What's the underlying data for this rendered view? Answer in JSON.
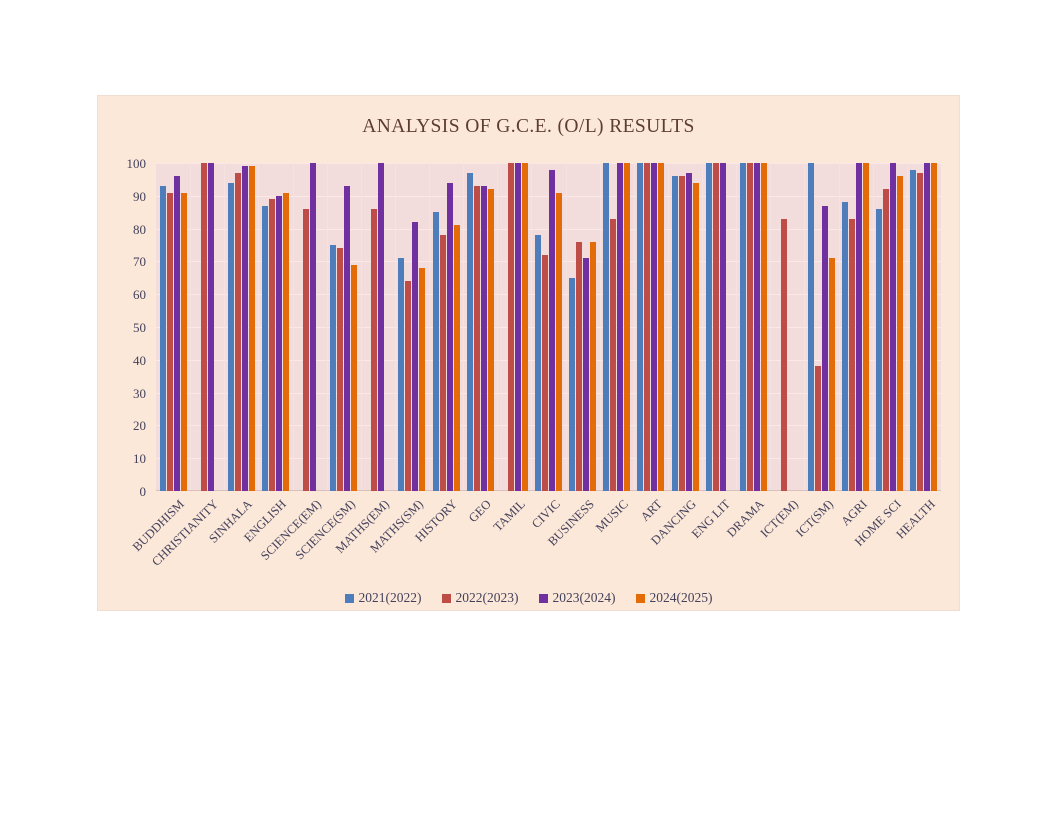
{
  "chart": {
    "panel_bg": "#fce8d9",
    "plot_bg": "#f3dddc",
    "title_color": "#5d3c34",
    "tick_color": "#43415c",
    "gridline_color": "#fae9e7",
    "axis_line_color": "#d8c0bd"
  },
  "chart_data": {
    "type": "bar",
    "title": "ANALYSIS OF G.C.E. (O/L) RESULTS",
    "categories": [
      "BUDDHISM",
      "CHRISTIANITY",
      "SINHALA",
      "ENGLISH",
      "SCIENCE(EM)",
      "SCIENCE(SM)",
      "MATHS(EM)",
      "MATHS(SM)",
      "HISTORY",
      "GEO",
      "TAMIL",
      "CIVIC",
      "BUSINESS",
      "MUSIC",
      "ART",
      "DANCING",
      "ENG LIT",
      "DRAMA",
      "ICT(EM)",
      "ICT(SM)",
      "AGRI",
      "HOME SCI",
      "HEALTH"
    ],
    "series": [
      {
        "name": "2021(2022)",
        "color": "#4d7ebb",
        "values": [
          93,
          null,
          94,
          87,
          null,
          75,
          null,
          71,
          85,
          97,
          null,
          78,
          65,
          100,
          100,
          96,
          100,
          100,
          null,
          100,
          88,
          86,
          98
        ]
      },
      {
        "name": "2022(2023)",
        "color": "#bf4d47",
        "values": [
          91,
          100,
          97,
          89,
          86,
          74,
          86,
          64,
          78,
          93,
          100,
          72,
          76,
          83,
          100,
          96,
          100,
          100,
          83,
          38,
          83,
          92,
          97
        ]
      },
      {
        "name": "2023(2024)",
        "color": "#7030a0",
        "values": [
          96,
          100,
          99,
          90,
          100,
          93,
          100,
          82,
          94,
          93,
          100,
          98,
          71,
          100,
          100,
          97,
          100,
          100,
          null,
          87,
          100,
          100,
          100
        ]
      },
      {
        "name": "2024(2025)",
        "color": "#e36c09",
        "values": [
          91,
          null,
          99,
          91,
          null,
          69,
          null,
          68,
          81,
          92,
          100,
          91,
          76,
          100,
          100,
          94,
          null,
          100,
          null,
          71,
          100,
          96,
          100
        ]
      }
    ],
    "ylim": [
      0,
      100
    ],
    "ytick_step": 10,
    "grid": true,
    "legend_position": "bottom"
  }
}
